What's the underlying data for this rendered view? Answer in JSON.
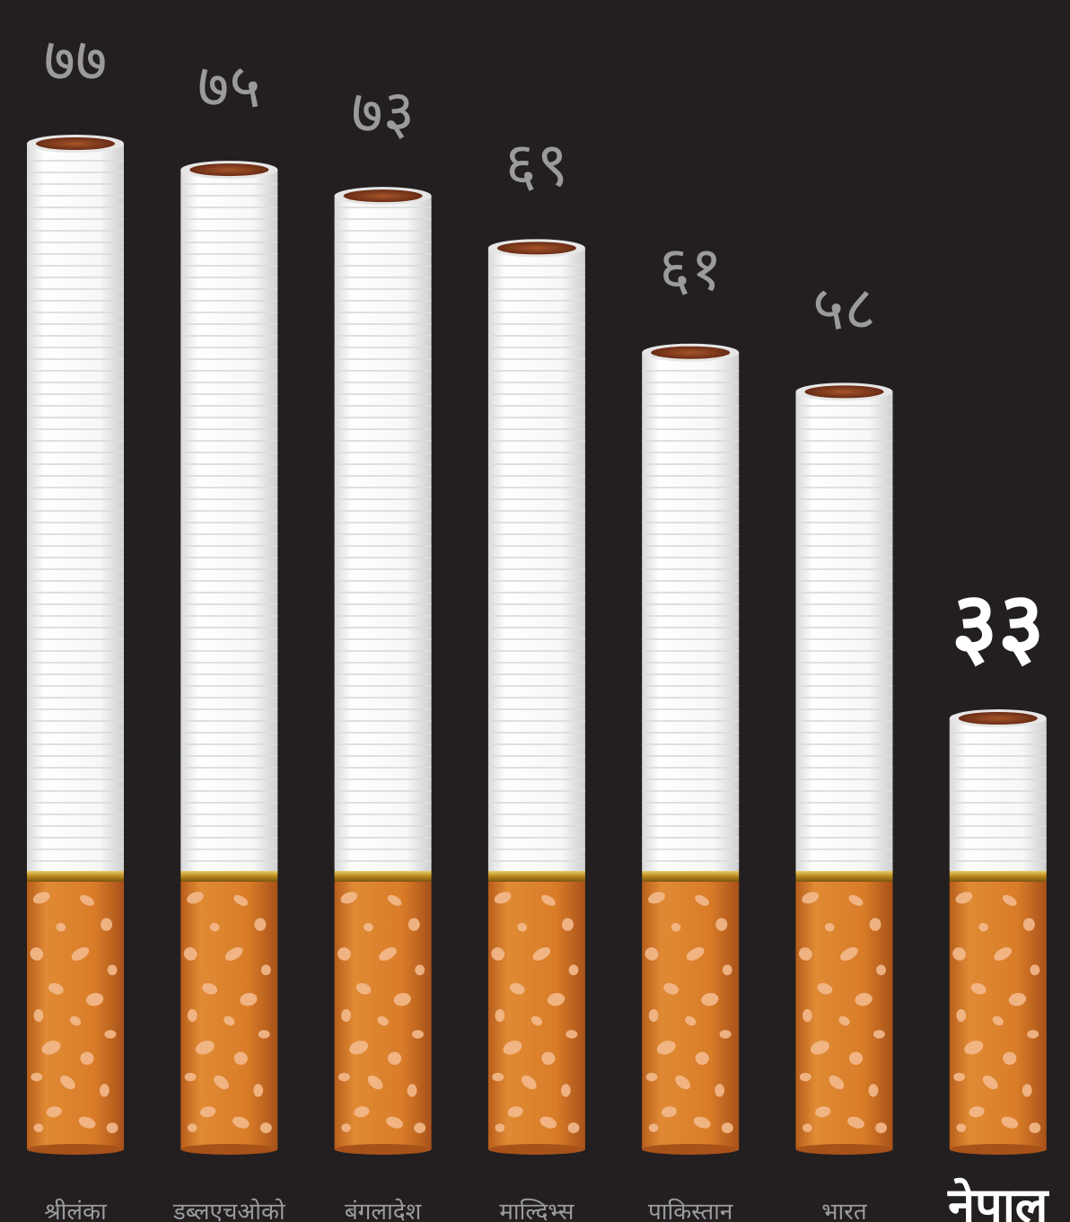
{
  "chart_data": {
    "type": "bar",
    "style": "cigarette-pictogram",
    "categories": [
      "श्रीलंका",
      "डब्लएचओको",
      "बंगलादेश",
      "माल्दिभ्स",
      "पाकिस्तान",
      "भारत",
      "नेपाल"
    ],
    "values": [
      77,
      75,
      73,
      69,
      61,
      58,
      33
    ],
    "value_labels": [
      "७७",
      "७५",
      "७३",
      "६९",
      "६१",
      "५८",
      "३३"
    ],
    "highlight_index": 6,
    "ylim": [
      0,
      80
    ],
    "title": "",
    "xlabel": "",
    "ylabel": "",
    "grid": false,
    "legend": "none"
  },
  "colors": {
    "background": "#231f20",
    "label_gray": "#9b9b9d",
    "highlight": "#ffffff",
    "filter_orange": "#d87a2a",
    "filter_dots": "#f3b98c",
    "paper": "#ffffff",
    "gold_band": "#c9a227",
    "tobacco": "#8a3a18"
  }
}
